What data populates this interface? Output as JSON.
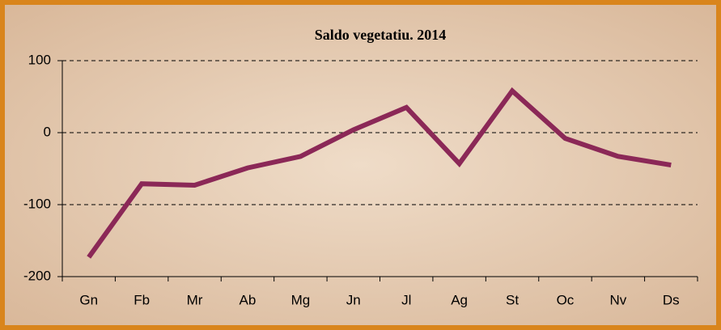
{
  "chart_data": {
    "type": "line",
    "title": "Saldo vegetatiu. 2014",
    "categories": [
      "Gn",
      "Fb",
      "Mr",
      "Ab",
      "Mg",
      "Jn",
      "Jl",
      "Ag",
      "St",
      "Oc",
      "Nv",
      "Ds"
    ],
    "values": [
      -173,
      -71,
      -73,
      -49,
      -33,
      4,
      35,
      -43,
      58,
      -8,
      -33,
      -45
    ],
    "color": "#8b2857",
    "ylim": [
      -200,
      100
    ],
    "yticks": [
      -200,
      -100,
      0,
      100
    ],
    "grid": true
  }
}
